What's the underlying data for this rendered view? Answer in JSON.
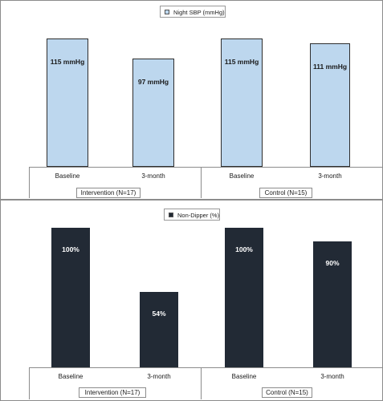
{
  "chart_data": [
    {
      "type": "bar",
      "legend": "Night SBP (mmHg)",
      "colors": {
        "bar": "#bdd7ee",
        "border": "#2e2e2e"
      },
      "groups": [
        {
          "label": "Intervention (N=17)",
          "categories": [
            "Baseline",
            "3-month"
          ]
        },
        {
          "label": "Control (N=15)",
          "categories": [
            "Baseline",
            "3-month"
          ]
        }
      ],
      "categories": [
        "Baseline",
        "3-month",
        "Baseline",
        "3-month"
      ],
      "values": [
        115,
        97,
        115,
        111
      ],
      "value_labels": [
        "115 mmHg",
        "97 mmHg",
        "115 mmHg",
        "111 mmHg"
      ],
      "ylim": [
        0,
        120
      ],
      "legend_position": "top-center",
      "grid": false
    },
    {
      "type": "bar",
      "legend": "Non-Dipper (%)",
      "colors": {
        "bar": "#222a35"
      },
      "groups": [
        {
          "label": "Intervention (N=17)",
          "categories": [
            "Baseline",
            "3-month"
          ]
        },
        {
          "label": "Control (N=15)",
          "categories": [
            "Baseline",
            "3-month"
          ]
        }
      ],
      "categories": [
        "Baseline",
        "3-month",
        "Baseline",
        "3-month"
      ],
      "values": [
        100,
        54,
        100,
        90
      ],
      "value_labels": [
        "100%",
        "54%",
        "100%",
        "90%"
      ],
      "ylim": [
        0,
        100
      ],
      "legend_position": "top-center",
      "grid": false
    }
  ]
}
